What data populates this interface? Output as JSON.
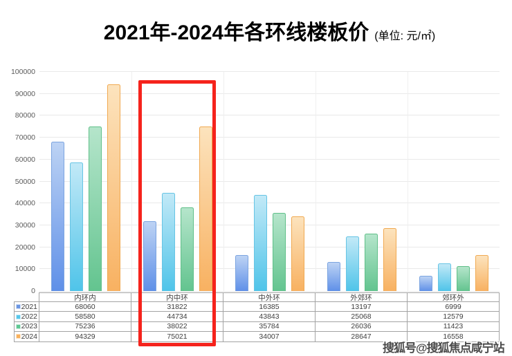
{
  "title": {
    "text": "2021年-2024年各环线楼板价",
    "unit": "(单位: 元/㎡)"
  },
  "watermark": "搜狐号@搜狐焦点咸宁站",
  "highlight": {
    "category": "内中环",
    "color": "#f5231c"
  },
  "colors": {
    "grid": "#e9e9e9",
    "table_border": "#a3a3a3",
    "axis_label": "#595959"
  },
  "chart_data": {
    "type": "bar",
    "title": "2021年-2024年各环线楼板价",
    "unit_label": "元/㎡",
    "categories": [
      "内环内",
      "内中环",
      "中外环",
      "外郊环",
      "郊环外"
    ],
    "series": [
      {
        "name": "2021",
        "values": [
          68060,
          31822,
          16385,
          13197,
          6999
        ],
        "legend_color": "#6b96e2",
        "gradient_top": "#bdd3f4",
        "gradient_bottom": "#5f90e8",
        "border_color": "#7ba4e0"
      },
      {
        "name": "2022",
        "values": [
          58580,
          44734,
          43843,
          25068,
          12579
        ],
        "legend_color": "#57c6ea",
        "gradient_top": "#c2e9f7",
        "gradient_bottom": "#4fc4e9",
        "border_color": "#66c4e4"
      },
      {
        "name": "2023",
        "values": [
          75236,
          38022,
          35784,
          26036,
          11423
        ],
        "legend_color": "#5fc793",
        "gradient_top": "#b5e5cb",
        "gradient_bottom": "#63c48f",
        "border_color": "#5fbf88"
      },
      {
        "name": "2024",
        "values": [
          94329,
          75021,
          34007,
          28647,
          16558
        ],
        "legend_color": "#f8b15c",
        "gradient_top": "#fce3bd",
        "gradient_bottom": "#f8b161",
        "border_color": "#f0a951"
      }
    ],
    "ylim": [
      0,
      100000
    ],
    "ytick_step": 10000,
    "grid": true,
    "legend_position": "table-left",
    "data_table_shown": true
  }
}
